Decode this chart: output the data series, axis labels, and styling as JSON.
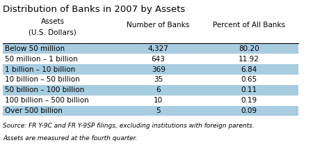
{
  "title": "Distribution of Banks in 2007 by Assets",
  "col1_header_line1": "Assets",
  "col1_header_line2": "(U.S. Dollars)",
  "col2_header": "Number of Banks",
  "col3_header": "Percent of All Banks",
  "rows": [
    {
      "label": "Below 50 million",
      "num": "4,327",
      "pct": "80.20",
      "shaded": true
    },
    {
      "label": "50 million – 1 billion",
      "num": "643",
      "pct": "11.92",
      "shaded": false
    },
    {
      "label": "1 billion – 10 billion",
      "num": "369",
      "pct": "6.84",
      "shaded": true
    },
    {
      "label": "10 billion – 50 billion",
      "num": "35",
      "pct": "0.65",
      "shaded": false
    },
    {
      "label": "50 billion – 100 billion",
      "num": "6",
      "pct": "0.11",
      "shaded": true
    },
    {
      "label": "100 billion – 500 billion",
      "num": "10",
      "pct": "0.19",
      "shaded": false
    },
    {
      "label": "Over 500 billion",
      "num": "5",
      "pct": "0.09",
      "shaded": true
    }
  ],
  "footer_line1": "Source: FR Y-9C and FR Y-9SP filings, excluding institutions with foreign parents.",
  "footer_line2": "Assets are measured at the fourth quarter.",
  "shaded_color": "#a8cce0",
  "header_line_color": "#000000",
  "title_fontsize": 9.5,
  "header_fontsize": 7.5,
  "data_fontsize": 7.5,
  "footer_fontsize": 6.5,
  "bg_color": "#ffffff"
}
